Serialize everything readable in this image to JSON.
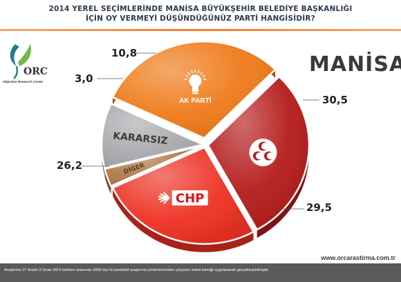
{
  "header": {
    "title_line1": "2014 YEREL SEÇİMLERİNDE MANİSA BÜYÜKŞEHİR BELEDİYE BAŞKANLIĞI",
    "title_line2": "İÇİN OY VERMEYİ DÜŞÜNDÜĞÜNÜZ PARTİ HANGİSİDİR?"
  },
  "logo": {
    "mark": "ORC",
    "caption": "Objective Research Center"
  },
  "city": "MANİSA",
  "footer": {
    "note": "Araştırma 27 Aralık-3 Ocak 2014 tarihleri arasında 3000 kişi ile kantitatif araştırma yöntemlerinden yüzyüze anket tekniği uygulanarak gerçekleştirilmiştir.",
    "website": "www.orcarastirma.com.tr"
  },
  "colors": {
    "akp": "#ef7a1a",
    "mhp": "#b51c1c",
    "chp": "#ee3124",
    "diger": "#b07a4a",
    "kararsiz": "#a9abae",
    "accent": "#ef7d2a"
  },
  "chart_data": {
    "type": "pie",
    "title": "2014 YEREL SEÇİMLERİNDE MANİSA BÜYÜKŞEHİR BELEDİYE BAŞKANLIĞI İÇİN OY VERMEYİ DÜŞÜNDÜĞÜNÜZ PARTİ HANGİSİDİR?",
    "slices": [
      {
        "key": "akp",
        "label": "AK PARTİ",
        "value": 30.5,
        "value_label": "30,5",
        "color": "#ef7a1a",
        "icon": "lightbulb-icon"
      },
      {
        "key": "mhp",
        "label": "",
        "value": 29.5,
        "value_label": "29,5",
        "color": "#b51c1c",
        "icon": "three-crescents-icon"
      },
      {
        "key": "chp",
        "label": "CHP",
        "value": 26.2,
        "value_label": "26,2",
        "color": "#ee3124",
        "icon": "six-arrows-icon"
      },
      {
        "key": "diger",
        "label": "DİGER",
        "value": 3.0,
        "value_label": "3,0",
        "color": "#b07a4a"
      },
      {
        "key": "kararsiz",
        "label": "KARARSIZ",
        "value": 10.8,
        "value_label": "10,8",
        "color": "#a9abae"
      }
    ]
  }
}
